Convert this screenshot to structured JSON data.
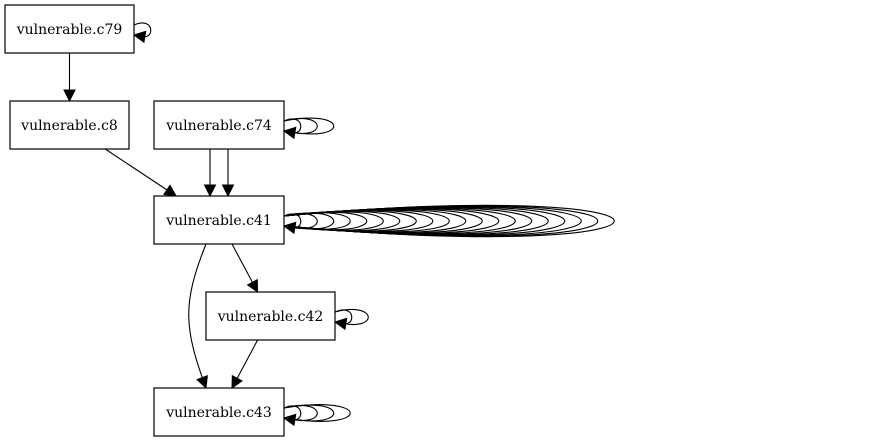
{
  "graph": {
    "nodes": [
      {
        "id": "c79",
        "label": "vulnerable.c79"
      },
      {
        "id": "c8",
        "label": "vulnerable.c8"
      },
      {
        "id": "c74",
        "label": "vulnerable.c74"
      },
      {
        "id": "c41",
        "label": "vulnerable.c41"
      },
      {
        "id": "c42",
        "label": "vulnerable.c42"
      },
      {
        "id": "c43",
        "label": "vulnerable.c43"
      }
    ],
    "edges": [
      {
        "from": "c79",
        "to": "c79",
        "count": 1
      },
      {
        "from": "c79",
        "to": "c8",
        "count": 1
      },
      {
        "from": "c8",
        "to": "c41",
        "count": 1
      },
      {
        "from": "c74",
        "to": "c74",
        "count": 3
      },
      {
        "from": "c74",
        "to": "c41",
        "count": 2
      },
      {
        "from": "c41",
        "to": "c41",
        "count": 20
      },
      {
        "from": "c41",
        "to": "c42",
        "count": 1
      },
      {
        "from": "c41",
        "to": "c43",
        "count": 1
      },
      {
        "from": "c42",
        "to": "c42",
        "count": 2
      },
      {
        "from": "c42",
        "to": "c43",
        "count": 1
      },
      {
        "from": "c43",
        "to": "c43",
        "count": 4
      }
    ]
  }
}
